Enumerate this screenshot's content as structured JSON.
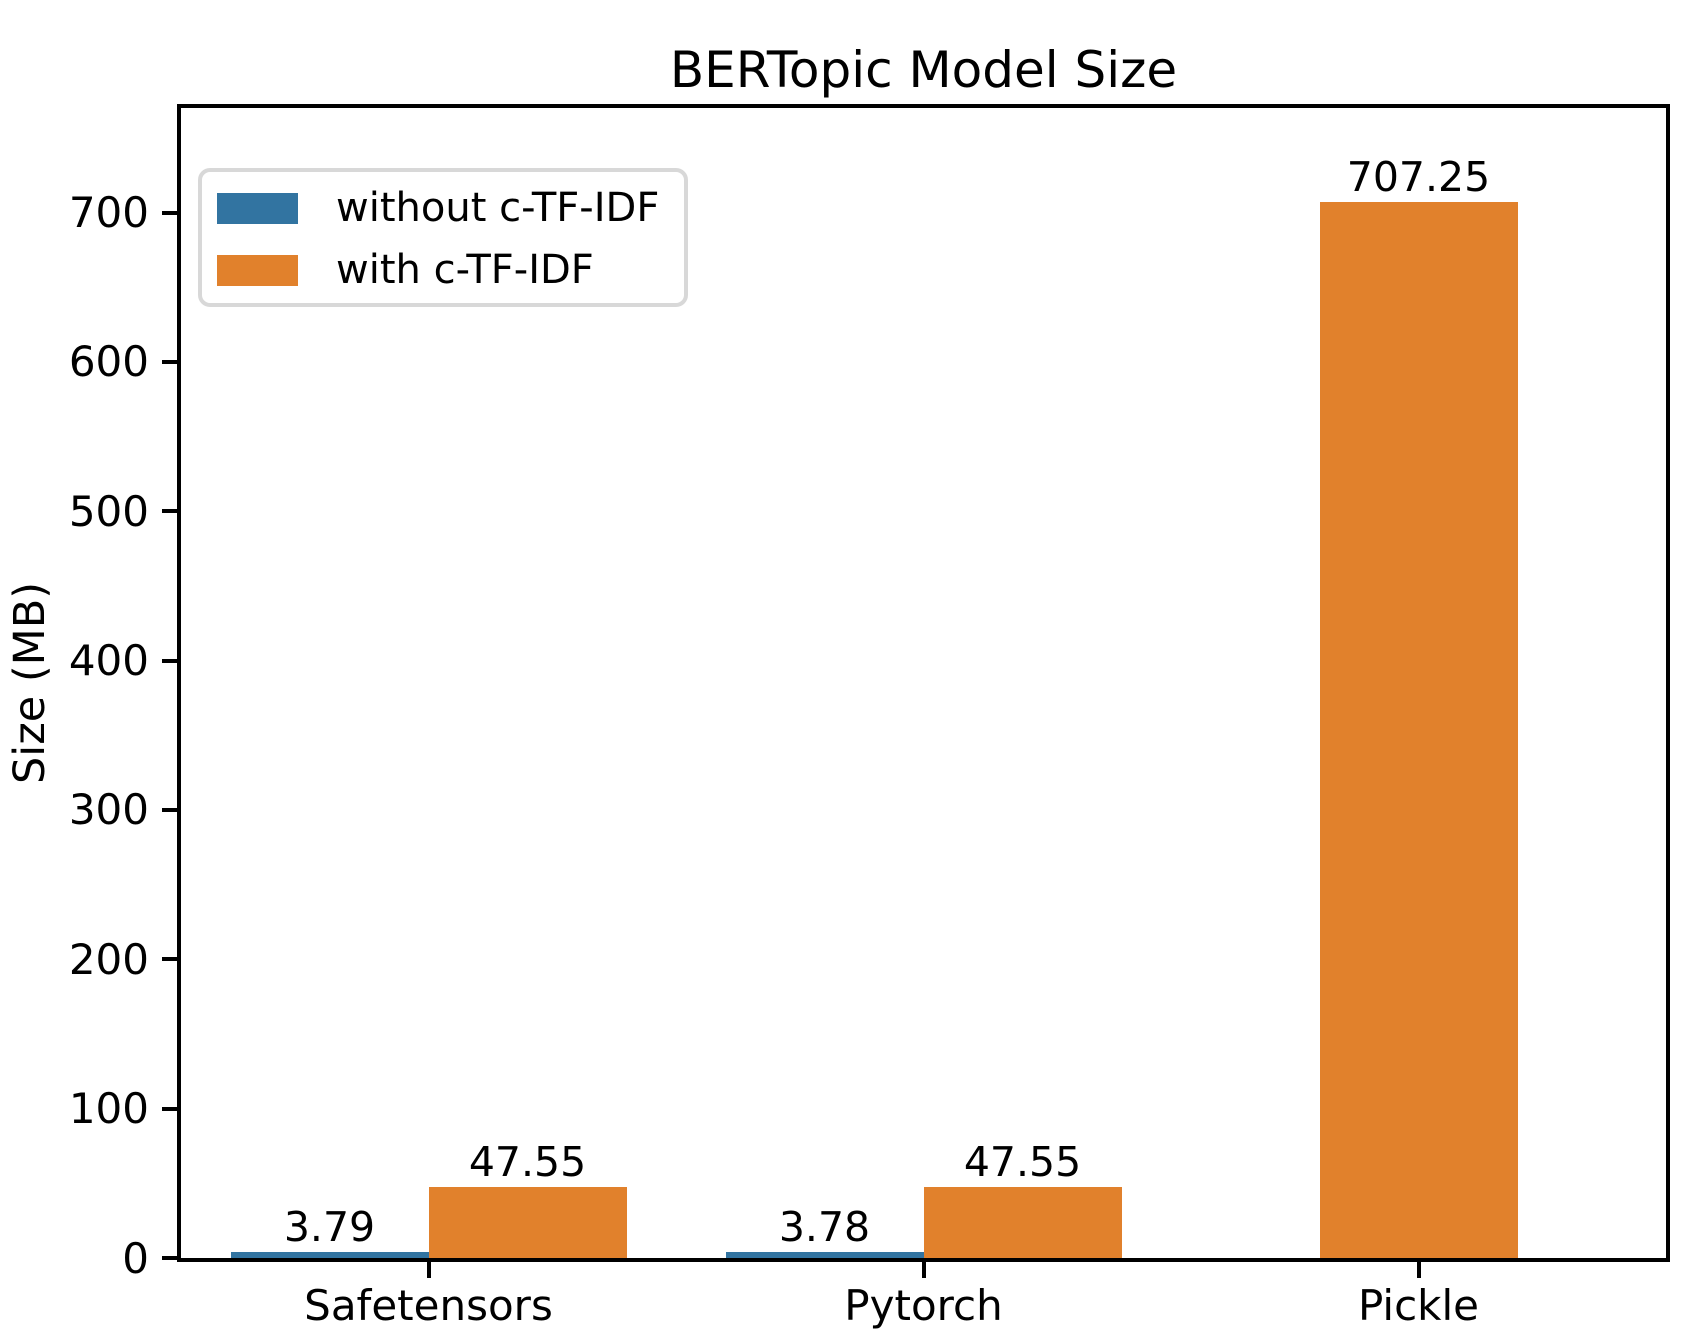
{
  "figure": {
    "title": "BERTopic Model Size"
  },
  "axes": {
    "ylabel": "Size (MB)"
  },
  "legend": {
    "items": [
      {
        "label": "without c-TF-IDF",
        "color": "#3274a1"
      },
      {
        "label": "with c-TF-IDF",
        "color": "#e1812c"
      }
    ]
  },
  "chart_data": {
    "type": "bar",
    "title": "BERTopic Model Size",
    "categories": [
      "Safetensors",
      "Pytorch",
      "Pickle"
    ],
    "series": [
      {
        "name": "without c-TF-IDF",
        "color": "#3274a1",
        "values": [
          3.79,
          3.78,
          null
        ],
        "labels": [
          "3.79",
          "3.78",
          null
        ]
      },
      {
        "name": "with c-TF-IDF",
        "color": "#e1812c",
        "values": [
          47.55,
          47.55,
          707.25
        ],
        "labels": [
          "47.55",
          "47.55",
          "707.25"
        ]
      }
    ],
    "xlabel": "",
    "ylabel": "Size (MB)",
    "ylim": [
      0,
      770
    ],
    "yticks": [
      0,
      100,
      200,
      300,
      400,
      500,
      600,
      700
    ],
    "grid": false,
    "legend_position": "upper left",
    "bar_width_fraction": 0.4,
    "spine_color": "#000000",
    "background_color": "#ffffff"
  }
}
